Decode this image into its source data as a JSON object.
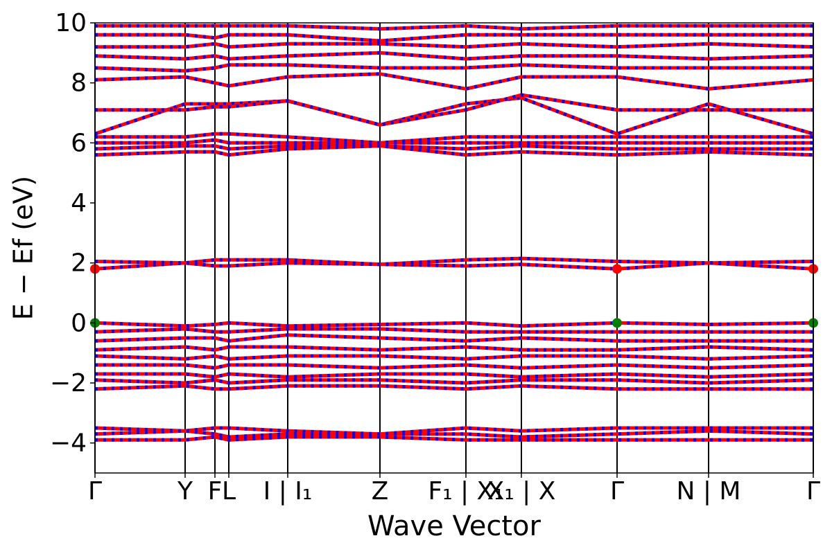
{
  "chart_data": {
    "type": "band-structure",
    "xlabel": "Wave Vector",
    "ylabel": "E − Ef (eV)",
    "x": [
      0,
      130,
      173,
      193,
      278,
      411,
      535,
      615,
      753,
      885,
      1036
    ],
    "xlim": [
      0,
      1036
    ],
    "xticks": [
      {
        "value": 0,
        "label": "Γ"
      },
      {
        "value": 130,
        "label": "Y"
      },
      {
        "value": 173,
        "label": "F"
      },
      {
        "value": 193,
        "label": "L"
      },
      {
        "value": 278,
        "label": "I | I₁"
      },
      {
        "value": 411,
        "label": "Z"
      },
      {
        "value": 535,
        "label": "F₁ | X₁"
      },
      {
        "value": 615,
        "label": "X₁ | X"
      },
      {
        "value": 753,
        "label": "Γ"
      },
      {
        "value": 885,
        "label": "N | M"
      },
      {
        "value": 1036,
        "label": "Γ"
      }
    ],
    "ylim": [
      -5,
      10
    ],
    "yticks": [
      {
        "value": -4,
        "label": "−4"
      },
      {
        "value": -2,
        "label": "−2"
      },
      0,
      2,
      4,
      6,
      8,
      10
    ],
    "color": "#ff0000",
    "dash_color": "#0000ff",
    "vlines": true,
    "series": [
      {
        "values": [
          -3.5,
          -3.6,
          -3.5,
          -3.5,
          -3.6,
          -3.7,
          -3.5,
          -3.6,
          -3.5,
          -3.5,
          -3.5
        ]
      },
      {
        "values": [
          -3.7,
          -3.6,
          -3.7,
          -3.8,
          -3.7,
          -3.7,
          -3.7,
          -3.8,
          -3.7,
          -3.6,
          -3.7
        ]
      },
      {
        "values": [
          -3.9,
          -3.9,
          -3.8,
          -3.9,
          -3.8,
          -3.8,
          -3.9,
          -3.9,
          -3.9,
          -3.9,
          -3.9
        ]
      },
      {
        "values": [
          -2.2,
          -2.1,
          -2.2,
          -2.2,
          -2.1,
          -2.1,
          -2.2,
          -2.1,
          -2.2,
          -2.2,
          -2.2
        ]
      },
      {
        "values": [
          -1.9,
          -2.0,
          -1.9,
          -2.0,
          -1.9,
          -1.9,
          -2.0,
          -1.9,
          -1.9,
          -2.0,
          -1.9
        ]
      },
      {
        "values": [
          -1.7,
          -1.7,
          -1.8,
          -1.7,
          -1.8,
          -1.7,
          -1.7,
          -1.8,
          -1.7,
          -1.8,
          -1.7
        ]
      },
      {
        "values": [
          -1.4,
          -1.4,
          -1.5,
          -1.4,
          -1.4,
          -1.5,
          -1.4,
          -1.5,
          -1.4,
          -1.5,
          -1.4
        ]
      },
      {
        "values": [
          -1.1,
          -1.2,
          -1.1,
          -1.2,
          -1.1,
          -1.1,
          -1.2,
          -1.1,
          -1.1,
          -1.2,
          -1.1
        ]
      },
      {
        "values": [
          -0.9,
          -0.8,
          -0.9,
          -0.8,
          -0.8,
          -0.9,
          -0.8,
          -0.9,
          -0.9,
          -0.8,
          -0.9
        ]
      },
      {
        "values": [
          -0.6,
          -0.5,
          -0.5,
          -0.6,
          -0.4,
          -0.5,
          -0.6,
          -0.5,
          -0.6,
          -0.6,
          -0.6
        ]
      },
      {
        "values": [
          -0.3,
          -0.2,
          -0.3,
          -0.3,
          -0.2,
          -0.2,
          -0.3,
          -0.3,
          -0.3,
          -0.3,
          -0.3
        ]
      },
      {
        "values": [
          0,
          -0.1,
          -0.05,
          0,
          -0.1,
          -0.05,
          0,
          -0.1,
          0,
          -0.05,
          0
        ]
      },
      {
        "values": [
          1.8,
          2.0,
          1.9,
          1.9,
          2.0,
          1.95,
          1.9,
          1.95,
          1.8,
          2.0,
          1.8
        ]
      },
      {
        "values": [
          2.05,
          2.0,
          2.1,
          2.1,
          2.1,
          1.95,
          2.1,
          2.15,
          2.05,
          2.0,
          2.05
        ]
      },
      {
        "values": [
          5.6,
          5.7,
          5.7,
          5.6,
          5.8,
          5.9,
          5.6,
          5.7,
          5.6,
          5.7,
          5.6
        ]
      },
      {
        "values": [
          5.8,
          5.9,
          5.9,
          5.8,
          5.9,
          5.9,
          5.8,
          5.9,
          5.8,
          5.8,
          5.8
        ]
      },
      {
        "values": [
          6.0,
          6.0,
          6.1,
          6.0,
          6.0,
          6.0,
          6.0,
          6.0,
          6.0,
          6.0,
          6.0
        ]
      },
      {
        "values": [
          6.2,
          6.2,
          6.3,
          6.3,
          6.2,
          6.0,
          6.2,
          6.2,
          6.2,
          6.2,
          6.2
        ]
      },
      {
        "values": [
          6.3,
          7.3,
          7.3,
          7.3,
          7.4,
          6.6,
          7.3,
          7.5,
          6.3,
          7.3,
          6.3
        ]
      },
      {
        "values": [
          7.1,
          7.1,
          7.2,
          7.2,
          7.4,
          6.6,
          7.1,
          7.6,
          7.1,
          7.1,
          7.1
        ]
      },
      {
        "values": [
          8.1,
          8.2,
          8.0,
          7.9,
          8.2,
          8.3,
          7.8,
          8.2,
          8.2,
          7.8,
          8.1
        ]
      },
      {
        "values": [
          8.5,
          8.4,
          8.5,
          8.6,
          8.6,
          8.5,
          8.5,
          8.6,
          8.5,
          8.5,
          8.5
        ]
      },
      {
        "values": [
          8.9,
          8.8,
          8.9,
          8.8,
          8.9,
          9.0,
          8.8,
          8.9,
          8.9,
          8.8,
          8.9
        ]
      },
      {
        "values": [
          9.2,
          9.2,
          9.3,
          9.2,
          9.3,
          9.3,
          9.2,
          9.3,
          9.2,
          9.3,
          9.2
        ]
      },
      {
        "values": [
          9.6,
          9.6,
          9.5,
          9.6,
          9.6,
          9.4,
          9.6,
          9.6,
          9.6,
          9.6,
          9.6
        ]
      },
      {
        "values": [
          9.9,
          9.9,
          9.9,
          9.9,
          9.9,
          9.8,
          9.9,
          9.8,
          9.9,
          9.9,
          9.9
        ]
      }
    ],
    "points": [
      {
        "color": "#ff0000",
        "x": [
          0,
          753,
          1036
        ],
        "values": [
          1.8,
          1.8,
          1.8
        ]
      },
      {
        "color": "#008000",
        "x": [
          0,
          753,
          1036
        ],
        "values": [
          0,
          0,
          0
        ]
      }
    ]
  }
}
